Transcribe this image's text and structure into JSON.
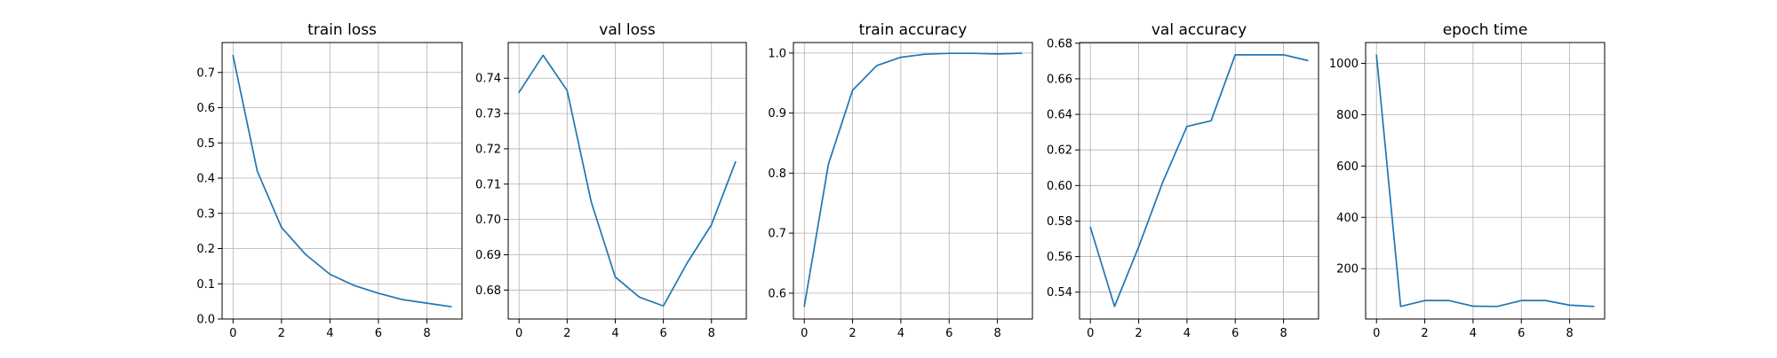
{
  "chart_data": [
    {
      "type": "line",
      "title": "train loss",
      "x": [
        0,
        1,
        2,
        3,
        4,
        5,
        6,
        7,
        8,
        9
      ],
      "y": [
        0.748,
        0.42,
        0.26,
        0.183,
        0.127,
        0.095,
        0.073,
        0.055,
        0.045,
        0.035
      ],
      "xlim": [
        -0.45,
        9.45
      ],
      "ylim": [
        0.0,
        0.785
      ],
      "xticks": [
        0,
        2,
        4,
        6,
        8
      ],
      "yticks": [
        0.0,
        0.1,
        0.2,
        0.3,
        0.4,
        0.5,
        0.6,
        0.7
      ],
      "ytick_labels": [
        "0.0",
        "0.1",
        "0.2",
        "0.3",
        "0.4",
        "0.5",
        "0.6",
        "0.7"
      ],
      "grid": true,
      "color": "#1f77b4"
    },
    {
      "type": "line",
      "title": "val loss",
      "x": [
        0,
        1,
        2,
        3,
        4,
        5,
        6,
        7,
        8,
        9
      ],
      "y": [
        0.736,
        0.7465,
        0.7365,
        0.705,
        0.6837,
        0.678,
        0.6755,
        0.6878,
        0.6985,
        0.7163
      ],
      "xlim": [
        -0.45,
        9.45
      ],
      "ylim": [
        0.6718,
        0.7501
      ],
      "xticks": [
        0,
        2,
        4,
        6,
        8
      ],
      "yticks": [
        0.68,
        0.69,
        0.7,
        0.71,
        0.72,
        0.73,
        0.74
      ],
      "ytick_labels": [
        "0.68",
        "0.69",
        "0.70",
        "0.71",
        "0.72",
        "0.73",
        "0.74"
      ],
      "grid": true,
      "color": "#1f77b4"
    },
    {
      "type": "line",
      "title": "train accuracy",
      "x": [
        0,
        1,
        2,
        3,
        4,
        5,
        6,
        7,
        8,
        9
      ],
      "y": [
        0.578,
        0.815,
        0.938,
        0.979,
        0.993,
        0.998,
        0.9995,
        0.9995,
        0.9985,
        0.9997
      ],
      "xlim": [
        -0.45,
        9.45
      ],
      "ylim": [
        0.557,
        1.0175
      ],
      "xticks": [
        0,
        2,
        4,
        6,
        8
      ],
      "yticks": [
        0.6,
        0.7,
        0.8,
        0.9,
        1.0
      ],
      "ytick_labels": [
        "0.6",
        "0.7",
        "0.8",
        "0.9",
        "1.0"
      ],
      "grid": true,
      "color": "#1f77b4"
    },
    {
      "type": "line",
      "title": "val accuracy",
      "x": [
        0,
        1,
        2,
        3,
        4,
        5,
        6,
        7,
        8,
        9
      ],
      "y": [
        0.5765,
        0.532,
        0.5655,
        0.602,
        0.6332,
        0.6364,
        0.6735,
        0.6735,
        0.6735,
        0.6703
      ],
      "xlim": [
        -0.45,
        9.45
      ],
      "ylim": [
        0.5249,
        0.6804
      ],
      "xticks": [
        0,
        2,
        4,
        6,
        8
      ],
      "yticks": [
        0.54,
        0.56,
        0.58,
        0.6,
        0.62,
        0.64,
        0.66,
        0.68
      ],
      "ytick_labels": [
        "0.54",
        "0.56",
        "0.58",
        "0.60",
        "0.62",
        "0.64",
        "0.66",
        "0.68"
      ],
      "grid": true,
      "color": "#1f77b4"
    },
    {
      "type": "line",
      "title": "epoch time",
      "x": [
        0,
        1,
        2,
        3,
        4,
        5,
        6,
        7,
        8,
        9
      ],
      "y": [
        1032,
        53,
        76,
        76,
        54,
        53,
        76,
        76,
        58,
        53
      ],
      "xlim": [
        -0.45,
        9.45
      ],
      "ylim": [
        4,
        1081
      ],
      "xticks": [
        0,
        2,
        4,
        6,
        8
      ],
      "yticks": [
        200,
        400,
        600,
        800,
        1000
      ],
      "ytick_labels": [
        "200",
        "400",
        "600",
        "800",
        "1000"
      ],
      "grid": true,
      "color": "#1f77b4"
    }
  ]
}
